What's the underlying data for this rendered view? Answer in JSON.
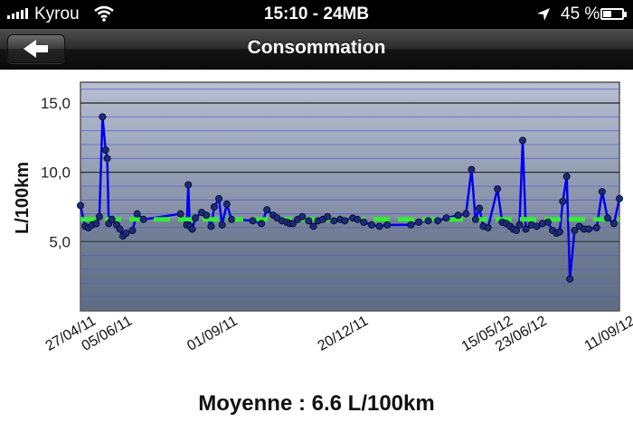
{
  "status_bar": {
    "carrier": "Kyrou",
    "clock": "15:10 - 24MB",
    "battery_percent": "45 %",
    "battery_level": 0.45,
    "icons": [
      "signal-bars-icon",
      "wifi-icon",
      "location-arrow-icon",
      "battery-icon"
    ]
  },
  "nav": {
    "title": "Consommation",
    "back_icon": "back-arrow-icon"
  },
  "footer": {
    "average_text": "Moyenne : 6.6 L/100km"
  },
  "colors": {
    "plot_light": "#b7bfd1",
    "plot_dark": "#5f6c86",
    "line": "#0000ee",
    "point": "#1c2a7a",
    "average_line": "#33ee33"
  },
  "chart_data": {
    "type": "line",
    "ylabel": "L/100km",
    "xlabel": "",
    "ylim": [
      0,
      16.5
    ],
    "y_ticks": [
      "15,0",
      "10,0",
      "5,0"
    ],
    "x_ticks": [
      "27/04/11",
      "05/06/11",
      "01/09/11",
      "20/12/11",
      "15/05/12",
      "23/06/12",
      "11/09/12"
    ],
    "average": 6.6,
    "series": [
      {
        "x": [
          0.0,
          0.6,
          1.0,
          1.5,
          2.0,
          2.4,
          2.8,
          3.2,
          3.4,
          3.6,
          4.0,
          4.6,
          5.0,
          5.4,
          5.8,
          6.6,
          7.2,
          8.0,
          12.7,
          13.5,
          13.7,
          13.9,
          14.2,
          14.6,
          15.4,
          16.0,
          16.6,
          17.0,
          17.6,
          18.0,
          18.6,
          19.2,
          21.9,
          23.0,
          23.7,
          24.5,
          25.0,
          25.6,
          26.2,
          26.6,
          27.0,
          27.6,
          28.2,
          29.0,
          29.6,
          30.2,
          30.8,
          31.4,
          32.2,
          33.0,
          33.6,
          34.6,
          35.2,
          36.0,
          37.0,
          38.0,
          39.0,
          42.0,
          43.0,
          44.2,
          45.4,
          46.5,
          48.0,
          49.0,
          49.7,
          50.2,
          50.7,
          51.2,
          51.8,
          53.0,
          53.6,
          54.1,
          54.6,
          55.0,
          55.4,
          55.8,
          56.2,
          56.6,
          57.3,
          58.0,
          58.7,
          59.4,
          60.0,
          60.5,
          60.9,
          61.3,
          61.8,
          62.2,
          62.8,
          63.4,
          64.0,
          64.6,
          65.6,
          66.3,
          67.0,
          67.8,
          68.5
        ],
        "y": [
          7.6,
          6.1,
          6.0,
          6.2,
          6.3,
          6.8,
          14.0,
          11.6,
          11.0,
          6.3,
          6.6,
          6.2,
          5.9,
          5.4,
          5.6,
          5.8,
          7.0,
          6.6,
          7.0,
          6.2,
          9.1,
          6.1,
          5.9,
          6.7,
          7.1,
          6.9,
          6.1,
          7.5,
          8.1,
          6.2,
          7.7,
          6.6,
          6.5,
          6.3,
          7.3,
          6.9,
          6.7,
          6.5,
          6.4,
          6.3,
          6.3,
          6.6,
          6.8,
          6.5,
          6.1,
          6.5,
          6.6,
          6.8,
          6.5,
          6.6,
          6.5,
          6.7,
          6.6,
          6.4,
          6.2,
          6.1,
          6.2,
          6.2,
          6.4,
          6.5,
          6.5,
          6.7,
          6.9,
          7.0,
          10.2,
          6.6,
          7.4,
          6.1,
          6.0,
          8.8,
          6.4,
          6.3,
          6.1,
          5.9,
          5.8,
          6.2,
          12.3,
          5.9,
          6.2,
          6.1,
          6.3,
          6.4,
          5.8,
          5.6,
          5.7,
          7.9,
          9.7,
          2.3,
          5.8,
          6.1,
          5.9,
          5.9,
          6.0,
          8.6,
          6.7,
          6.3,
          8.1
        ]
      }
    ]
  }
}
